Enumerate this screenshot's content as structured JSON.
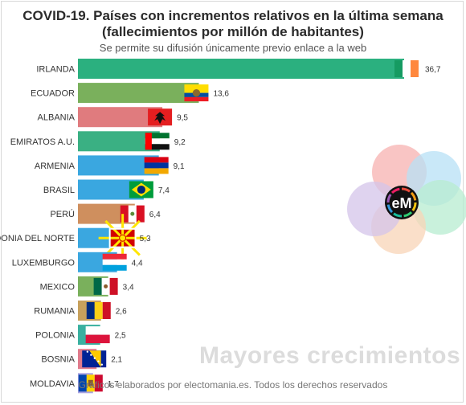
{
  "header": {
    "title_line1": "COVID-19. Países con incrementos relativos en la última semana",
    "title_line2": "(fallecimientos por millón de habitantes)",
    "subtitle": "Se permite su difusión únicamente previo enlace a la web"
  },
  "footer": "Gráficos elaborados por electomania.es. Todos los derechos reservados",
  "watermark": "Mayores crecimientos",
  "logo_text": "eM",
  "chart_data": {
    "type": "bar",
    "orientation": "horizontal",
    "categories": [
      "IRLANDA",
      "ECUADOR",
      "ALBANIA",
      "EMIRATOS A.U.",
      "ARMENIA",
      "BRASIL",
      "PERÚ",
      "MACEDONIA DEL NORTE",
      "LUXEMBURGO",
      "MEXICO",
      "RUMANIA",
      "POLONIA",
      "BOSNIA",
      "MOLDAVIA"
    ],
    "values": [
      36.7,
      13.6,
      9.5,
      9.2,
      9.1,
      7.4,
      6.4,
      5.3,
      4.4,
      3.4,
      2.6,
      2.5,
      2.1,
      1.7
    ],
    "value_labels": [
      "36,7",
      "13,6",
      "9,5",
      "9,2",
      "9,1",
      "7,4",
      "6,4",
      "5,3",
      "4,4",
      "3,4",
      "2,6",
      "2,5",
      "2,1",
      "1,7"
    ],
    "colors": [
      "#2bb07f",
      "#7ab05c",
      "#e07b7e",
      "#3ab083",
      "#3aa7e0",
      "#3aa7e0",
      "#cf8f5e",
      "#3aa7e0",
      "#3aa7e0",
      "#7ab05c",
      "#c8a15c",
      "#3ab0a0",
      "#e07b8c",
      "#a9a2e0"
    ],
    "flags": [
      "ireland-flag",
      "ecuador-flag",
      "albania-flag",
      "uae-flag",
      "armenia-flag",
      "brazil-flag",
      "peru-flag",
      "north-macedonia-flag",
      "luxembourg-flag",
      "mexico-flag",
      "romania-flag",
      "poland-flag",
      "bosnia-flag",
      "moldova-flag"
    ],
    "title": "COVID-19. Países con incrementos relativos en la última semana (fallecimientos por millón de habitantes)",
    "xlabel": "",
    "ylabel": "",
    "xlim": [
      0,
      36.7
    ],
    "grid": false,
    "legend": "none"
  }
}
